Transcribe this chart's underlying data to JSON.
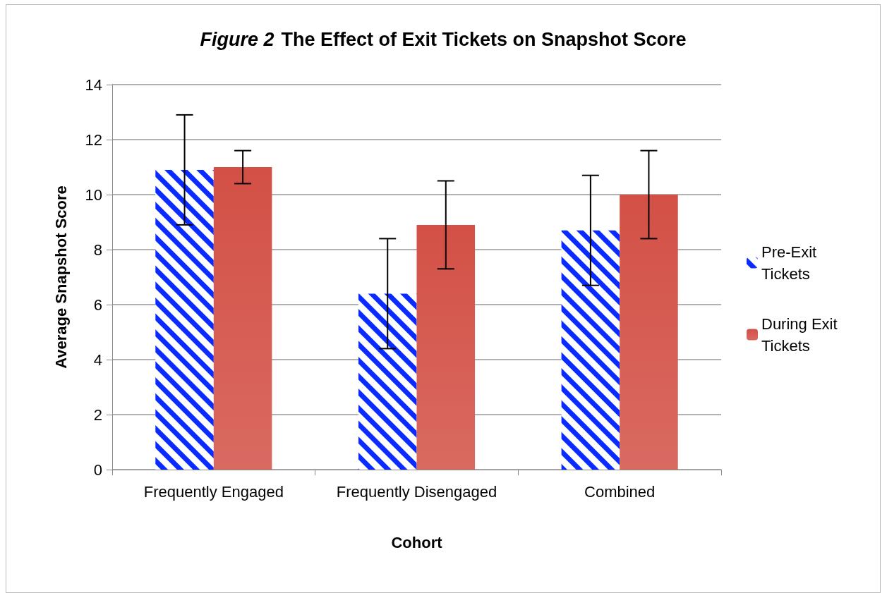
{
  "chart_data": {
    "type": "bar",
    "title": "Figure 2  The Effect of Exit Tickets on Snapshot Score",
    "xlabel": "Cohort",
    "ylabel": "Average Snapshot Score",
    "categories": [
      "Frequently Engaged",
      "Frequently Disengaged",
      "Combined"
    ],
    "series": [
      {
        "name": "Pre-Exit Tickets",
        "color": "#0a2bff",
        "values": [
          10.9,
          6.4,
          8.7
        ],
        "errors": [
          2.0,
          2.0,
          2.0
        ]
      },
      {
        "name": "During Exit Tickets",
        "color": "#d35046",
        "values": [
          11.0,
          8.9,
          10.0
        ],
        "errors": [
          0.6,
          1.6,
          1.6
        ]
      }
    ],
    "ylim": [
      0,
      14
    ],
    "yticks": [
      0,
      2,
      4,
      6,
      8,
      10,
      12,
      14
    ],
    "grid": "y",
    "legend": "right"
  }
}
